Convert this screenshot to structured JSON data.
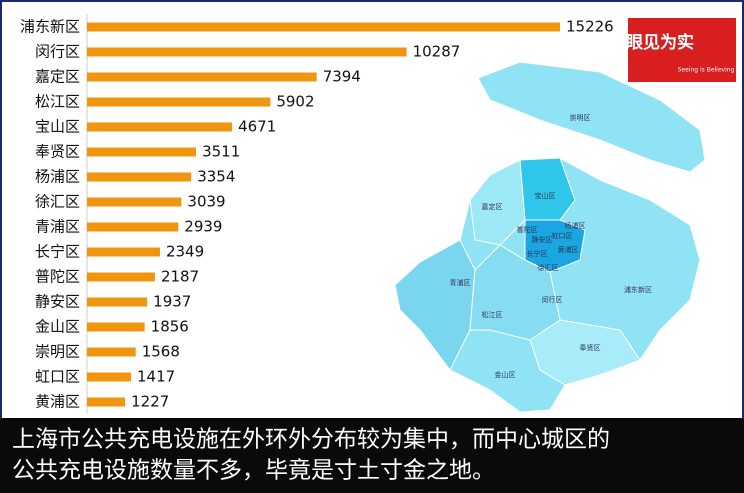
{
  "chart_data": {
    "type": "bar",
    "orientation": "horizontal",
    "color": "#f0950f",
    "categories": [
      "浦东新区",
      "闵行区",
      "嘉定区",
      "松江区",
      "宝山区",
      "奉贤区",
      "杨浦区",
      "徐汇区",
      "青浦区",
      "长宁区",
      "普陀区",
      "静安区",
      "金山区",
      "崇明区",
      "虹口区",
      "黄浦区"
    ],
    "values": [
      15226,
      10287,
      7394,
      5902,
      4671,
      3511,
      3354,
      3039,
      2939,
      2349,
      2187,
      1937,
      1856,
      1568,
      1417,
      1227
    ]
  },
  "logo": {
    "title": "眼见为实",
    "subtitle": "Seeing is Believing"
  },
  "map": {
    "labels": [
      "崇明区",
      "宝山区",
      "嘉定区",
      "杨浦区",
      "虹口区",
      "静安区",
      "普陀区",
      "长宁区",
      "徐汇区",
      "黄浦区",
      "青浦区",
      "松江区",
      "闵行区",
      "浦东新区",
      "奉贤区",
      "金山区"
    ]
  },
  "caption": {
    "lines": [
      "上海市公共充电设施在外环外分布较为集中，而中心城区的",
      "公共充电设施数量不多，毕竟是寸土寸金之地。"
    ]
  }
}
